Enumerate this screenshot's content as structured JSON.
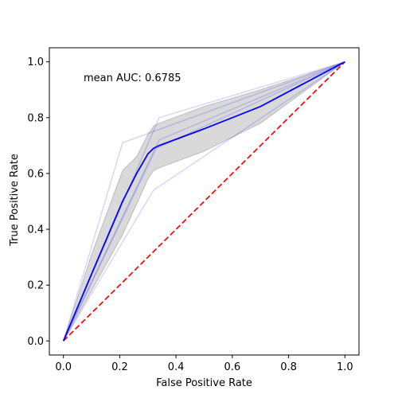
{
  "chart_data": {
    "type": "line",
    "title": "",
    "xlabel": "False Positive Rate",
    "ylabel": "True Positive Rate",
    "xlim": [
      0.0,
      1.0
    ],
    "ylim": [
      0.0,
      1.0
    ],
    "xticks": [
      "0.0",
      "0.2",
      "0.4",
      "0.6",
      "0.8",
      "1.0"
    ],
    "yticks": [
      "0.0",
      "0.2",
      "0.4",
      "0.6",
      "0.8",
      "1.0"
    ],
    "grid": false,
    "annotation": "mean AUC: 0.6785",
    "fold_curves": [
      {
        "x": [
          0.0,
          0.21,
          1.0
        ],
        "y": [
          0.0,
          0.71,
          1.0
        ]
      },
      {
        "x": [
          0.0,
          0.32,
          1.0
        ],
        "y": [
          0.0,
          0.54,
          1.0
        ]
      },
      {
        "x": [
          0.0,
          0.34,
          1.0
        ],
        "y": [
          0.0,
          0.8,
          1.0
        ]
      },
      {
        "x": [
          0.0,
          0.33,
          1.0
        ],
        "y": [
          0.0,
          0.69,
          1.0
        ]
      },
      {
        "x": [
          0.0,
          0.34,
          1.0
        ],
        "y": [
          0.0,
          0.72,
          1.0
        ]
      }
    ],
    "mean_curve": {
      "x": [
        0.0,
        0.1,
        0.21,
        0.26,
        0.3,
        0.32,
        0.34,
        0.5,
        0.7,
        1.0
      ],
      "y": [
        0.0,
        0.24,
        0.5,
        0.6,
        0.67,
        0.69,
        0.7,
        0.76,
        0.84,
        1.0
      ]
    },
    "std_band": {
      "x": [
        0.0,
        0.1,
        0.21,
        0.26,
        0.3,
        0.32,
        0.34,
        0.5,
        0.7,
        1.0
      ],
      "upper": [
        0.0,
        0.31,
        0.61,
        0.66,
        0.74,
        0.77,
        0.78,
        0.84,
        0.9,
        1.0
      ],
      "lower": [
        0.0,
        0.18,
        0.38,
        0.49,
        0.58,
        0.61,
        0.62,
        0.68,
        0.78,
        1.0
      ]
    },
    "chance_line": {
      "x": [
        0.0,
        1.0
      ],
      "y": [
        0.0,
        1.0
      ]
    },
    "colors": {
      "mean": "#0000ff",
      "folds": "#0000ff",
      "band": "#808080",
      "chance": "#ff0000"
    }
  }
}
